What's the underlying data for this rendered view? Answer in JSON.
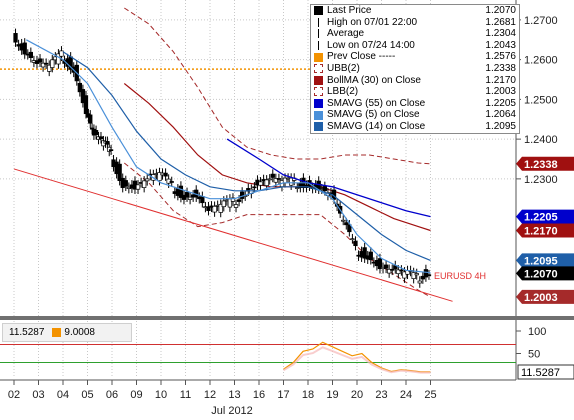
{
  "legend": [
    {
      "label": "Last Price",
      "value": "1.2070",
      "swatch": "square-icon",
      "color": "#000000"
    },
    {
      "label": "High on 07/01 22:00",
      "value": "1.2681",
      "swatch": "high-marker-icon",
      "color": "#000000"
    },
    {
      "label": "Average",
      "value": "1.2304",
      "swatch": "average-marker-icon",
      "color": "#000000"
    },
    {
      "label": "Low on 07/24 14:00",
      "value": "1.2043",
      "swatch": "low-marker-icon",
      "color": "#000000"
    },
    {
      "label": "Prev Close -----",
      "value": "1.2576",
      "swatch": "square-icon",
      "color": "#f39200"
    },
    {
      "label": "UBB(2)",
      "value": "1.2338",
      "swatch": "dashed-square-icon",
      "color": "#a52a2a"
    },
    {
      "label": "BollMA (30) on Close",
      "value": "1.2170",
      "swatch": "square-icon",
      "color": "#a01010"
    },
    {
      "label": "LBB(2)",
      "value": "1.2003",
      "swatch": "dashed-square-icon",
      "color": "#a52a2a"
    },
    {
      "label": "SMAVG (55) on Close",
      "value": "1.2205",
      "swatch": "square-icon",
      "color": "#0000cc"
    },
    {
      "label": "SMAVG (5) on Close",
      "value": "1.2064",
      "swatch": "square-icon",
      "color": "#4a90d9"
    },
    {
      "label": "SMAVG (14) on Close",
      "value": "1.2095",
      "swatch": "square-icon",
      "color": "#1f5fa8"
    }
  ],
  "oscillator": {
    "value_a": "11.5287",
    "value_b": "9.0008",
    "color_b": "#f39200"
  },
  "chart_data": {
    "type": "candlestick",
    "instrument_label": "EURUSD 4H",
    "x_label": "Jul 2012",
    "x_ticks": [
      "02",
      "03",
      "04",
      "05",
      "06",
      "09",
      "10",
      "11",
      "12",
      "13",
      "16",
      "17",
      "18",
      "19",
      "20",
      "23",
      "24",
      "25"
    ],
    "y_ticks": [
      "1.2300",
      "1.2400",
      "1.2500",
      "1.2600",
      "1.2700"
    ],
    "ylim": [
      1.195,
      1.275
    ],
    "badges": [
      {
        "value": "1.2338",
        "color": "#a01010"
      },
      {
        "value": "1.2205",
        "color": "#0000cc"
      },
      {
        "value": "1.2170",
        "color": "#a01010"
      },
      {
        "value": "1.2095",
        "color": "#1f5fa8"
      },
      {
        "value": "1.2070",
        "color": "#000000"
      },
      {
        "value": "1.2003",
        "color": "#a52a2a"
      }
    ],
    "prev_close": 1.2576,
    "trendline": {
      "start": {
        "day": 0,
        "value": 1.2325
      },
      "end": {
        "day": 17.9,
        "value": 1.1992
      }
    },
    "close_series": [
      {
        "day": 0.0,
        "value": 1.266
      },
      {
        "day": 0.5,
        "value": 1.262
      },
      {
        "day": 1.0,
        "value": 1.259
      },
      {
        "day": 1.5,
        "value": 1.258
      },
      {
        "day": 2.0,
        "value": 1.261
      },
      {
        "day": 2.5,
        "value": 1.258
      },
      {
        "day": 3.0,
        "value": 1.247
      },
      {
        "day": 3.3,
        "value": 1.241
      },
      {
        "day": 3.7,
        "value": 1.239
      },
      {
        "day": 4.0,
        "value": 1.236
      },
      {
        "day": 4.5,
        "value": 1.229
      },
      {
        "day": 5.0,
        "value": 1.228
      },
      {
        "day": 5.5,
        "value": 1.23
      },
      {
        "day": 6.0,
        "value": 1.231
      },
      {
        "day": 6.5,
        "value": 1.228
      },
      {
        "day": 7.0,
        "value": 1.226
      },
      {
        "day": 7.5,
        "value": 1.226
      },
      {
        "day": 8.0,
        "value": 1.222
      },
      {
        "day": 8.5,
        "value": 1.223
      },
      {
        "day": 9.0,
        "value": 1.224
      },
      {
        "day": 9.5,
        "value": 1.227
      },
      {
        "day": 10.0,
        "value": 1.229
      },
      {
        "day": 10.5,
        "value": 1.23
      },
      {
        "day": 11.0,
        "value": 1.229
      },
      {
        "day": 11.5,
        "value": 1.229
      },
      {
        "day": 12.0,
        "value": 1.229
      },
      {
        "day": 12.5,
        "value": 1.228
      },
      {
        "day": 13.0,
        "value": 1.226
      },
      {
        "day": 13.5,
        "value": 1.219
      },
      {
        "day": 14.0,
        "value": 1.212
      },
      {
        "day": 14.5,
        "value": 1.211
      },
      {
        "day": 15.0,
        "value": 1.208
      },
      {
        "day": 15.5,
        "value": 1.207
      },
      {
        "day": 16.0,
        "value": 1.206
      },
      {
        "day": 16.5,
        "value": 1.205
      },
      {
        "day": 17.0,
        "value": 1.207
      }
    ],
    "sma5": [
      {
        "day": 0.5,
        "value": 1.265
      },
      {
        "day": 2.0,
        "value": 1.26
      },
      {
        "day": 3.0,
        "value": 1.254
      },
      {
        "day": 4.0,
        "value": 1.243
      },
      {
        "day": 5.0,
        "value": 1.233
      },
      {
        "day": 6.0,
        "value": 1.229
      },
      {
        "day": 7.0,
        "value": 1.227
      },
      {
        "day": 8.0,
        "value": 1.225
      },
      {
        "day": 9.0,
        "value": 1.225
      },
      {
        "day": 10.0,
        "value": 1.227
      },
      {
        "day": 11.0,
        "value": 1.229
      },
      {
        "day": 12.0,
        "value": 1.229
      },
      {
        "day": 13.0,
        "value": 1.225
      },
      {
        "day": 14.0,
        "value": 1.216
      },
      {
        "day": 15.0,
        "value": 1.21
      },
      {
        "day": 16.0,
        "value": 1.207
      },
      {
        "day": 17.0,
        "value": 1.2064
      }
    ],
    "sma14": [
      {
        "day": 2.0,
        "value": 1.262
      },
      {
        "day": 3.0,
        "value": 1.258
      },
      {
        "day": 4.0,
        "value": 1.251
      },
      {
        "day": 5.0,
        "value": 1.242
      },
      {
        "day": 6.0,
        "value": 1.235
      },
      {
        "day": 7.0,
        "value": 1.231
      },
      {
        "day": 8.0,
        "value": 1.228
      },
      {
        "day": 9.0,
        "value": 1.227
      },
      {
        "day": 10.0,
        "value": 1.227
      },
      {
        "day": 11.0,
        "value": 1.228
      },
      {
        "day": 12.0,
        "value": 1.228
      },
      {
        "day": 13.0,
        "value": 1.226
      },
      {
        "day": 14.0,
        "value": 1.221
      },
      {
        "day": 15.0,
        "value": 1.216
      },
      {
        "day": 16.0,
        "value": 1.212
      },
      {
        "day": 17.0,
        "value": 1.2095
      }
    ],
    "sma55": [
      {
        "day": 8.7,
        "value": 1.24
      },
      {
        "day": 10.0,
        "value": 1.235
      },
      {
        "day": 11.0,
        "value": 1.231
      },
      {
        "day": 12.0,
        "value": 1.229
      },
      {
        "day": 13.0,
        "value": 1.228
      },
      {
        "day": 14.0,
        "value": 1.226
      },
      {
        "day": 15.0,
        "value": 1.224
      },
      {
        "day": 16.0,
        "value": 1.222
      },
      {
        "day": 17.0,
        "value": 1.2205
      }
    ],
    "boll_ma": [
      {
        "day": 4.5,
        "value": 1.254
      },
      {
        "day": 5.5,
        "value": 1.249
      },
      {
        "day": 6.5,
        "value": 1.243
      },
      {
        "day": 7.5,
        "value": 1.236
      },
      {
        "day": 8.5,
        "value": 1.231
      },
      {
        "day": 9.5,
        "value": 1.229
      },
      {
        "day": 10.5,
        "value": 1.228
      },
      {
        "day": 11.5,
        "value": 1.228
      },
      {
        "day": 12.5,
        "value": 1.228
      },
      {
        "day": 13.5,
        "value": 1.226
      },
      {
        "day": 14.5,
        "value": 1.223
      },
      {
        "day": 15.5,
        "value": 1.22
      },
      {
        "day": 16.5,
        "value": 1.218
      },
      {
        "day": 17.0,
        "value": 1.217
      }
    ],
    "ubb": [
      {
        "day": 4.5,
        "value": 1.273
      },
      {
        "day": 5.5,
        "value": 1.269
      },
      {
        "day": 6.5,
        "value": 1.262
      },
      {
        "day": 7.5,
        "value": 1.253
      },
      {
        "day": 8.5,
        "value": 1.243
      },
      {
        "day": 9.5,
        "value": 1.238
      },
      {
        "day": 10.5,
        "value": 1.236
      },
      {
        "day": 11.5,
        "value": 1.235
      },
      {
        "day": 12.5,
        "value": 1.235
      },
      {
        "day": 13.5,
        "value": 1.236
      },
      {
        "day": 14.5,
        "value": 1.236
      },
      {
        "day": 15.5,
        "value": 1.235
      },
      {
        "day": 16.5,
        "value": 1.234
      },
      {
        "day": 17.0,
        "value": 1.2338
      }
    ],
    "lbb": [
      {
        "day": 4.5,
        "value": 1.234
      },
      {
        "day": 5.5,
        "value": 1.229
      },
      {
        "day": 6.5,
        "value": 1.222
      },
      {
        "day": 7.5,
        "value": 1.218
      },
      {
        "day": 8.5,
        "value": 1.219
      },
      {
        "day": 9.5,
        "value": 1.221
      },
      {
        "day": 10.5,
        "value": 1.221
      },
      {
        "day": 11.5,
        "value": 1.221
      },
      {
        "day": 12.5,
        "value": 1.221
      },
      {
        "day": 13.5,
        "value": 1.216
      },
      {
        "day": 14.5,
        "value": 1.21
      },
      {
        "day": 15.5,
        "value": 1.206
      },
      {
        "day": 16.5,
        "value": 1.202
      },
      {
        "day": 17.0,
        "value": 1.2003
      }
    ],
    "oscillator": {
      "y_ticks": [
        "50",
        "100"
      ],
      "ylim": [
        0,
        120
      ],
      "upper_level": 70,
      "lower_level": 30,
      "series": [
        {
          "day": 11.0,
          "value": 15
        },
        {
          "day": 11.4,
          "value": 30
        },
        {
          "day": 11.8,
          "value": 55
        },
        {
          "day": 12.2,
          "value": 60
        },
        {
          "day": 12.6,
          "value": 75
        },
        {
          "day": 13.0,
          "value": 65
        },
        {
          "day": 13.4,
          "value": 55
        },
        {
          "day": 13.8,
          "value": 45
        },
        {
          "day": 14.2,
          "value": 50
        },
        {
          "day": 14.6,
          "value": 30
        },
        {
          "day": 15.0,
          "value": 18
        },
        {
          "day": 15.4,
          "value": 10
        },
        {
          "day": 15.8,
          "value": 14
        },
        {
          "day": 16.2,
          "value": 12
        },
        {
          "day": 16.6,
          "value": 9
        },
        {
          "day": 17.0,
          "value": 9
        }
      ]
    }
  }
}
